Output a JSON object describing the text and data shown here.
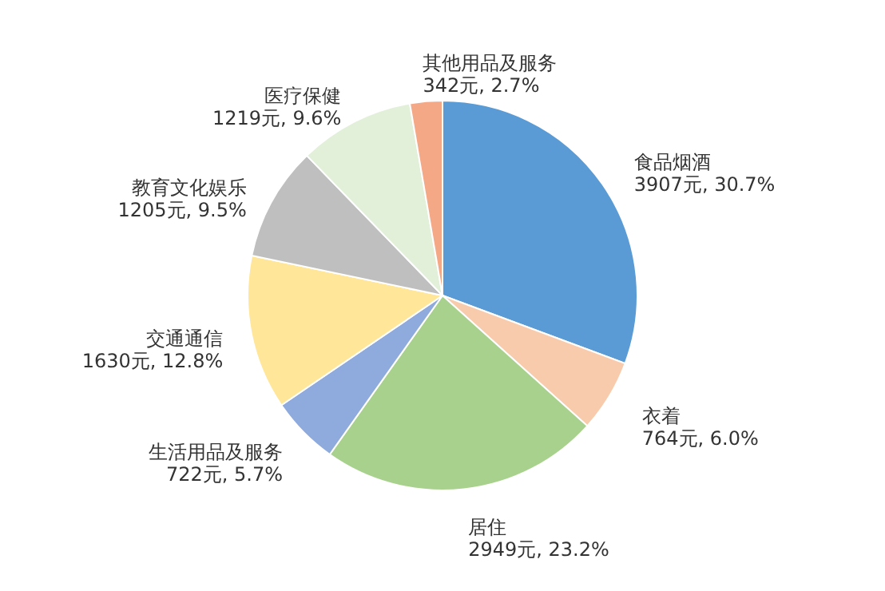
{
  "chart_data": {
    "type": "pie",
    "categories": [
      "食品烟酒",
      "衣着",
      "居住",
      "生活用品及服务",
      "交通通信",
      "教育文化娱乐",
      "医疗保健",
      "其他用品及服务"
    ],
    "values": [
      3907,
      764,
      2949,
      722,
      1630,
      1205,
      1219,
      342
    ],
    "value_labels": [
      "3907元, 30.7%",
      "764元, 6.0%",
      "2949元, 23.2%",
      "722元, 5.7%",
      "1630元, 12.8%",
      "1205元, 9.5%",
      "1219元, 9.6%",
      "342元, 2.7%"
    ],
    "colors": [
      "#5b9bd5",
      "#f8cbad",
      "#a9d18e",
      "#8faadc",
      "#ffe699",
      "#bfbfbf",
      "#e2f0d9",
      "#f4a886"
    ]
  }
}
